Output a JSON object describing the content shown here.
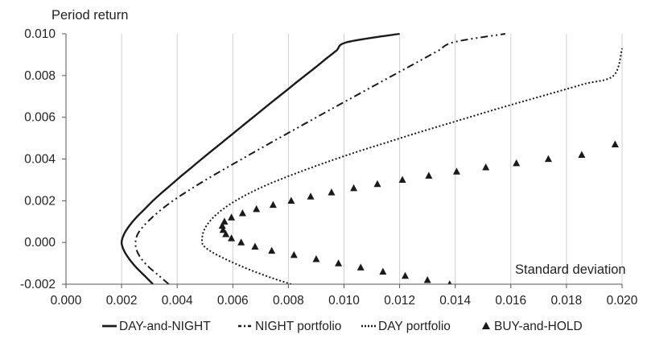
{
  "chart_data": {
    "type": "line",
    "title": "",
    "xlabel": "Standard deviation",
    "ylabel": "Period return",
    "xlim": [
      0.0,
      0.02
    ],
    "ylim": [
      -0.002,
      0.01
    ],
    "x_ticks": [
      "0.000",
      "0.002",
      "0.004",
      "0.006",
      "0.008",
      "0.010",
      "0.012",
      "0.014",
      "0.016",
      "0.018",
      "0.020"
    ],
    "y_ticks": [
      "-0.002",
      "0.000",
      "0.002",
      "0.004",
      "0.006",
      "0.008",
      "0.010"
    ],
    "grid": "vertical",
    "legend_position": "bottom",
    "series": [
      {
        "name": "DAY-and-NIGHT",
        "style": "solid",
        "color": "#1a1a1a",
        "points": [
          [
            0.00313,
            -0.002
          ],
          [
            0.00283,
            -0.0016
          ],
          [
            0.00253,
            -0.0012
          ],
          [
            0.00228,
            -0.0008
          ],
          [
            0.00209,
            -0.0004
          ],
          [
            0.002,
            0.0
          ],
          [
            0.00209,
            0.0004
          ],
          [
            0.00228,
            0.0008
          ],
          [
            0.00253,
            0.0012
          ],
          [
            0.00283,
            0.0016
          ],
          [
            0.00313,
            0.002
          ],
          [
            0.00346,
            0.0024
          ],
          [
            0.00381,
            0.0028
          ],
          [
            0.00416,
            0.0032
          ],
          [
            0.00452,
            0.0036
          ],
          [
            0.00488,
            0.004
          ],
          [
            0.00525,
            0.0044
          ],
          [
            0.00562,
            0.0048
          ],
          [
            0.00599,
            0.0052
          ],
          [
            0.00636,
            0.0056
          ],
          [
            0.00673,
            0.006
          ],
          [
            0.0071,
            0.0064
          ],
          [
            0.00747,
            0.0068
          ],
          [
            0.00785,
            0.0072
          ],
          [
            0.00822,
            0.0076
          ],
          [
            0.0086,
            0.008
          ],
          [
            0.00898,
            0.0084
          ],
          [
            0.00935,
            0.0088
          ],
          [
            0.00973,
            0.0092
          ],
          [
            0.01011,
            0.0096
          ],
          [
            0.012,
            0.01
          ]
        ]
      },
      {
        "name": "NIGHT portfolio",
        "style": "dash-dot-dot",
        "color": "#1a1a1a",
        "points": [
          [
            0.0037,
            -0.002
          ],
          [
            0.00335,
            -0.0016
          ],
          [
            0.003,
            -0.0012
          ],
          [
            0.00272,
            -0.0008
          ],
          [
            0.00255,
            -0.0004
          ],
          [
            0.0025,
            0.0
          ],
          [
            0.00258,
            0.0004
          ],
          [
            0.0028,
            0.0008
          ],
          [
            0.0031,
            0.0012
          ],
          [
            0.00345,
            0.0016
          ],
          [
            0.00385,
            0.002
          ],
          [
            0.0043,
            0.0024
          ],
          [
            0.00478,
            0.0028
          ],
          [
            0.00528,
            0.0032
          ],
          [
            0.0058,
            0.0036
          ],
          [
            0.00633,
            0.004
          ],
          [
            0.00686,
            0.0044
          ],
          [
            0.00739,
            0.0048
          ],
          [
            0.00793,
            0.0052
          ],
          [
            0.00847,
            0.0056
          ],
          [
            0.00901,
            0.006
          ],
          [
            0.00955,
            0.0064
          ],
          [
            0.0101,
            0.0068
          ],
          [
            0.01065,
            0.0072
          ],
          [
            0.0112,
            0.0076
          ],
          [
            0.01175,
            0.008
          ],
          [
            0.0123,
            0.0084
          ],
          [
            0.01285,
            0.0088
          ],
          [
            0.0134,
            0.0092
          ],
          [
            0.01395,
            0.0096
          ],
          [
            0.0158,
            0.01
          ]
        ]
      },
      {
        "name": "DAY portfolio",
        "style": "dotted",
        "color": "#1a1a1a",
        "points": [
          [
            0.0081,
            -0.002
          ],
          [
            0.0074,
            -0.0017
          ],
          [
            0.0066,
            -0.0013
          ],
          [
            0.0059,
            -0.0009
          ],
          [
            0.0053,
            -0.0005
          ],
          [
            0.00498,
            -0.0002
          ],
          [
            0.0049,
            0.0
          ],
          [
            0.00492,
            0.0004
          ],
          [
            0.00505,
            0.0008
          ],
          [
            0.0053,
            0.0012
          ],
          [
            0.00565,
            0.0016
          ],
          [
            0.0061,
            0.002
          ],
          [
            0.00665,
            0.0024
          ],
          [
            0.0073,
            0.0028
          ],
          [
            0.00805,
            0.0032
          ],
          [
            0.00885,
            0.0036
          ],
          [
            0.0097,
            0.004
          ],
          [
            0.0106,
            0.0044
          ],
          [
            0.01155,
            0.0048
          ],
          [
            0.0125,
            0.0052
          ],
          [
            0.0135,
            0.0056
          ],
          [
            0.0145,
            0.006
          ],
          [
            0.0155,
            0.0064
          ],
          [
            0.01655,
            0.0068
          ],
          [
            0.0176,
            0.0072
          ],
          [
            0.01865,
            0.0076
          ],
          [
            0.0197,
            0.008
          ],
          [
            0.02,
            0.0093
          ]
        ]
      },
      {
        "name": "BUY-and-HOLD",
        "style": "triangle-markers",
        "color": "#1a1a1a",
        "points": [
          [
            0.0138,
            -0.002
          ],
          [
            0.013,
            -0.0018
          ],
          [
            0.0122,
            -0.0016
          ],
          [
            0.0114,
            -0.0014
          ],
          [
            0.0106,
            -0.0012
          ],
          [
            0.0098,
            -0.001
          ],
          [
            0.009,
            -0.0008
          ],
          [
            0.0082,
            -0.0006
          ],
          [
            0.0074,
            -0.0004
          ],
          [
            0.0068,
            -0.0002
          ],
          [
            0.0063,
            0.0
          ],
          [
            0.00595,
            0.0002
          ],
          [
            0.00575,
            0.0004
          ],
          [
            0.00565,
            0.0006
          ],
          [
            0.00562,
            0.0008
          ],
          [
            0.0057,
            0.001
          ],
          [
            0.00595,
            0.0012
          ],
          [
            0.00635,
            0.0014
          ],
          [
            0.00685,
            0.0016
          ],
          [
            0.00745,
            0.0018
          ],
          [
            0.0081,
            0.002
          ],
          [
            0.0088,
            0.0022
          ],
          [
            0.00955,
            0.0024
          ],
          [
            0.01035,
            0.0026
          ],
          [
            0.0112,
            0.0028
          ],
          [
            0.0121,
            0.003
          ],
          [
            0.01305,
            0.0032
          ],
          [
            0.01405,
            0.0034
          ],
          [
            0.0151,
            0.0036
          ],
          [
            0.0162,
            0.0038
          ],
          [
            0.01735,
            0.004
          ],
          [
            0.01855,
            0.0042
          ],
          [
            0.01975,
            0.0047
          ]
        ]
      }
    ]
  }
}
